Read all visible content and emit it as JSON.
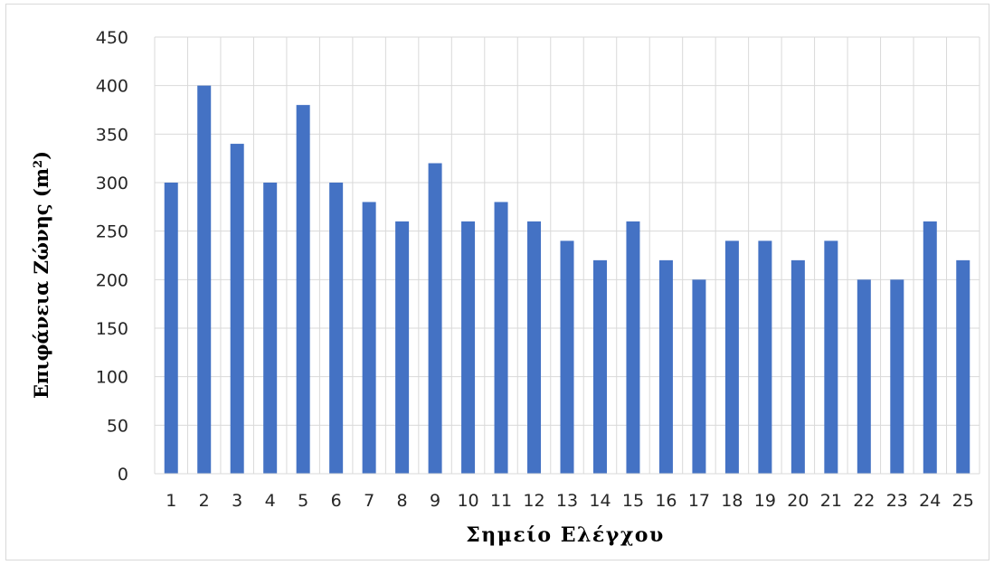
{
  "chart_data": {
    "type": "bar",
    "title": "",
    "xlabel": "Σημείο Ελέγχου",
    "ylabel": "Επιφάνεια Ζώνης (m",
    "ylabel_superscript": "2",
    "ylabel_close": ")",
    "categories": [
      "1",
      "2",
      "3",
      "4",
      "5",
      "6",
      "7",
      "8",
      "9",
      "10",
      "11",
      "12",
      "13",
      "14",
      "15",
      "16",
      "17",
      "18",
      "19",
      "20",
      "21",
      "22",
      "23",
      "24",
      "25"
    ],
    "values": [
      300,
      400,
      340,
      300,
      380,
      300,
      280,
      260,
      320,
      260,
      280,
      260,
      240,
      220,
      260,
      220,
      200,
      240,
      240,
      220,
      240,
      200,
      200,
      260,
      220
    ],
    "ylim": [
      0,
      450
    ],
    "yticks": [
      0,
      50,
      100,
      150,
      200,
      250,
      300,
      350,
      400,
      450
    ],
    "grid": true,
    "legend": "none",
    "bar_color": "#4472C4",
    "grid_color": "#d9d9d9"
  }
}
